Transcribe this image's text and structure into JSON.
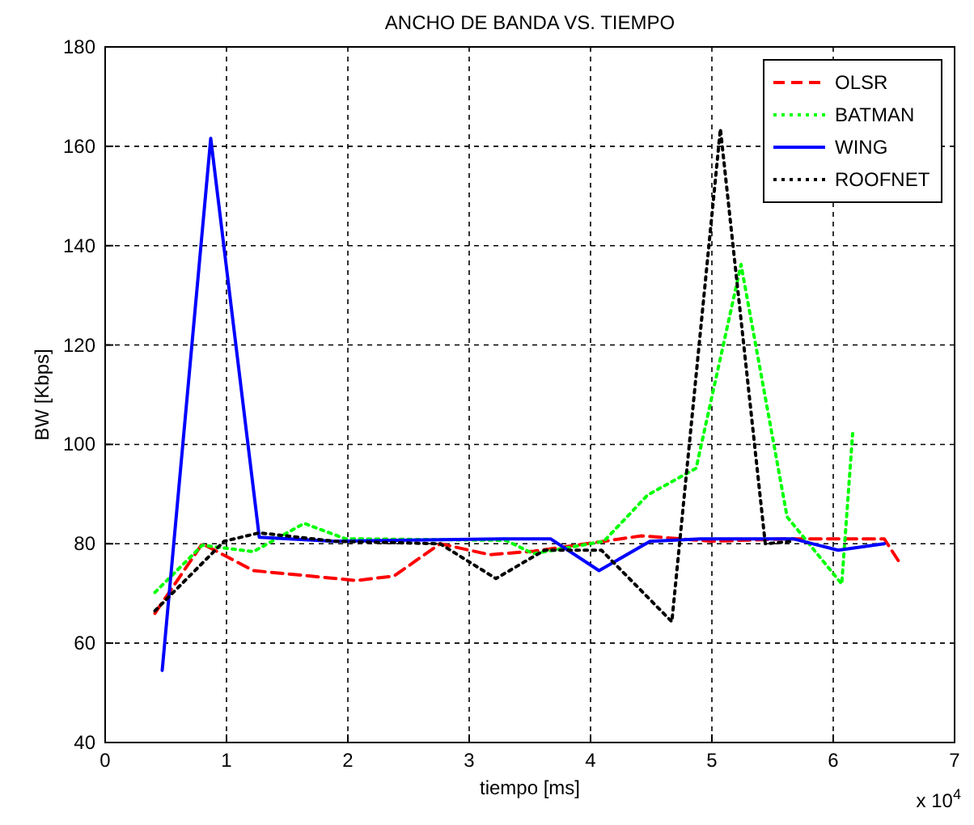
{
  "chart_data": {
    "type": "line",
    "title": "ANCHO DE BANDA VS. TIEMPO",
    "xlabel": "tiempo [ms]",
    "ylabel": "BW [Kbps]",
    "annotations": [
      "x 10$^{4}$"
    ],
    "xlim": [
      0,
      7
    ],
    "xticks": [
      0,
      1,
      2,
      3,
      4,
      5,
      6,
      7
    ],
    "ylim": [
      40,
      180
    ],
    "yticks": [
      40,
      60,
      80,
      100,
      120,
      140,
      160,
      180
    ],
    "grid": true,
    "legend": "top right",
    "series": [
      {
        "name": "OLSR",
        "color": "#ff0000",
        "line_style": "dashed",
        "x": [
          0.41,
          0.8,
          1.22,
          2.07,
          2.38,
          2.76,
          3.17,
          3.53,
          4.11,
          4.42,
          5.0,
          5.62,
          6.42,
          6.56
        ],
        "values": [
          66,
          80,
          74.6,
          72.6,
          73.5,
          80,
          77.8,
          78.5,
          80.5,
          81.6,
          80.5,
          81,
          81,
          75.7
        ]
      },
      {
        "name": "BATMAN",
        "color": "#00ff00",
        "line_style": "dotted",
        "x": [
          0.41,
          0.8,
          1.22,
          1.64,
          1.98,
          3.3,
          3.53,
          4.11,
          4.47,
          4.87,
          5.24,
          5.62,
          6.07,
          6.16
        ],
        "values": [
          70.2,
          79.7,
          78.4,
          84.1,
          81,
          80.7,
          78,
          80.5,
          89.8,
          95.2,
          136.2,
          85.4,
          71.9,
          102.2
        ]
      },
      {
        "name": "WING",
        "color": "#0000ff",
        "line_style": "solid",
        "x": [
          0.47,
          0.87,
          1.27,
          1.89,
          3.27,
          3.67,
          4.07,
          4.49,
          4.91,
          5.67,
          6.04,
          6.42
        ],
        "values": [
          54.5,
          161.6,
          81.3,
          80.5,
          81,
          81,
          74.6,
          80.5,
          81,
          81,
          78.7,
          80
        ]
      },
      {
        "name": "ROOFNET",
        "color": "#000000",
        "line_style": "dotted",
        "x": [
          0.41,
          0.98,
          1.27,
          1.89,
          2.76,
          3.22,
          3.62,
          4.09,
          4.67,
          5.07,
          5.44,
          5.67
        ],
        "values": [
          66.5,
          80.5,
          82.2,
          80.5,
          80,
          73,
          78.7,
          78.7,
          64.3,
          163.5,
          80,
          80.5
        ]
      }
    ]
  }
}
